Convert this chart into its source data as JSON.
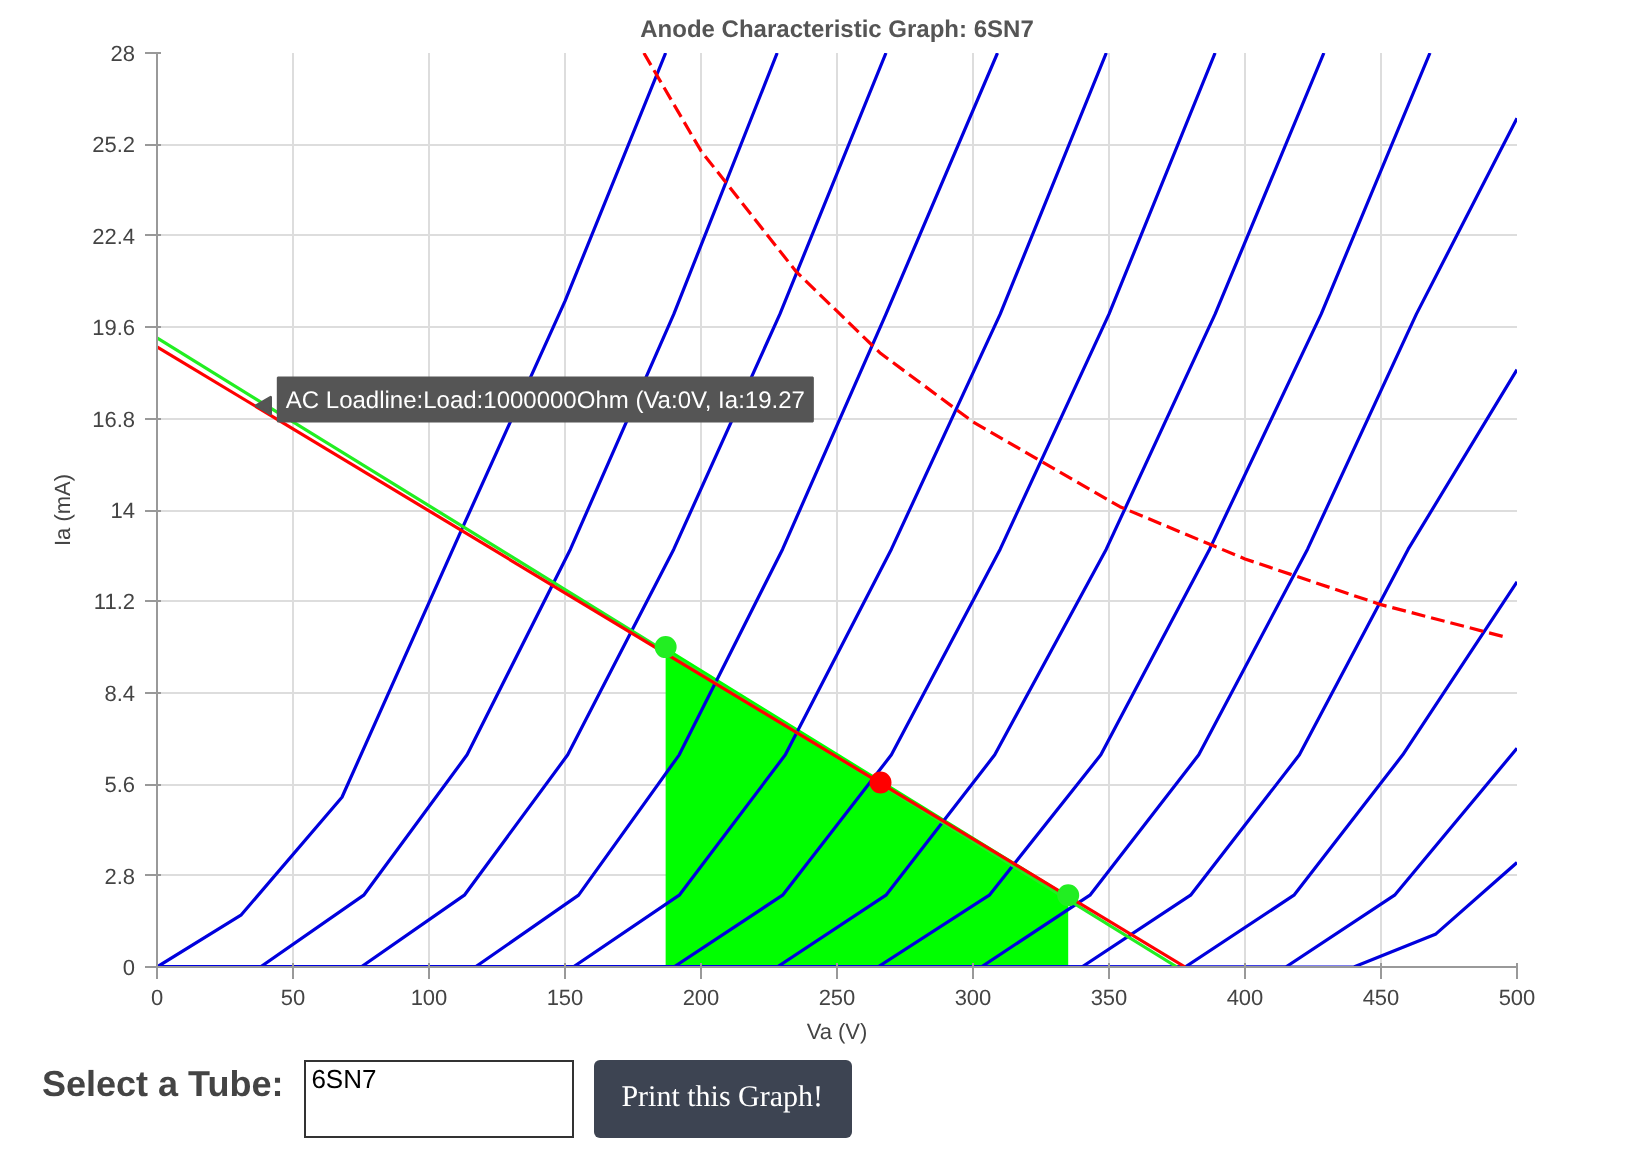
{
  "chart_data": {
    "type": "line",
    "title": "Anode Characteristic Graph: 6SN7",
    "xlabel": "Va (V)",
    "ylabel": "Ia (mA)",
    "xlim": [
      0,
      500
    ],
    "ylim": [
      0,
      28
    ],
    "xticks": [
      0,
      50,
      100,
      150,
      200,
      250,
      300,
      350,
      400,
      450,
      500
    ],
    "yticks": [
      0,
      2.8,
      5.6,
      8.4,
      11.2,
      14,
      16.8,
      19.6,
      22.4,
      25.2,
      28
    ],
    "grid": true,
    "series": [
      {
        "type": "area",
        "color": "#00ff00",
        "x": [
          187,
          335
        ],
        "values": [
          9.8,
          2.2
        ]
      },
      {
        "color": "#0000dd",
        "x": [
          0,
          31,
          68,
          112,
          150,
          187
        ],
        "values": [
          0,
          1.6,
          5.2,
          13.4,
          20.4,
          28
        ]
      },
      {
        "color": "#0000dd",
        "x": [
          0,
          38,
          76,
          114,
          152,
          190,
          228
        ],
        "values": [
          0,
          0,
          2.2,
          6.5,
          12.8,
          20,
          28
        ]
      },
      {
        "color": "#0000dd",
        "x": [
          0,
          75,
          113,
          151,
          190,
          229,
          268
        ],
        "values": [
          0,
          0,
          2.2,
          6.5,
          12.8,
          20,
          28
        ]
      },
      {
        "color": "#0000dd",
        "x": [
          0,
          117,
          155,
          192,
          230,
          268,
          309
        ],
        "values": [
          0,
          0,
          2.2,
          6.5,
          12.8,
          20,
          28
        ]
      },
      {
        "color": "#0000dd",
        "x": [
          0,
          153,
          192,
          231,
          270,
          310,
          349
        ],
        "values": [
          0,
          0,
          2.2,
          6.5,
          12.8,
          20,
          28
        ]
      },
      {
        "color": "#0000dd",
        "x": [
          0,
          190,
          230,
          270,
          310,
          350,
          389
        ],
        "values": [
          0,
          0,
          2.2,
          6.5,
          12.8,
          20,
          28
        ]
      },
      {
        "color": "#0000dd",
        "x": [
          0,
          228,
          268,
          308,
          349,
          389,
          429
        ],
        "values": [
          0,
          0,
          2.2,
          6.5,
          12.8,
          20,
          28
        ]
      },
      {
        "color": "#0000dd",
        "x": [
          0,
          265,
          306,
          347,
          387,
          428,
          468
        ],
        "values": [
          0,
          0,
          2.2,
          6.5,
          12.8,
          20,
          28
        ]
      },
      {
        "color": "#0000dd",
        "x": [
          0,
          303,
          343,
          383,
          423,
          463,
          500
        ],
        "values": [
          0,
          0,
          2.2,
          6.5,
          12.8,
          20,
          26
        ]
      },
      {
        "color": "#0000dd",
        "x": [
          0,
          340,
          380,
          420,
          460,
          500
        ],
        "values": [
          0,
          0,
          2.2,
          6.5,
          12.8,
          18.3
        ]
      },
      {
        "color": "#0000dd",
        "x": [
          0,
          378,
          418,
          458,
          500
        ],
        "values": [
          0,
          0,
          2.2,
          6.5,
          11.8
        ]
      },
      {
        "color": "#0000dd",
        "x": [
          0,
          415,
          455,
          500
        ],
        "values": [
          0,
          0,
          2.2,
          6.7
        ]
      },
      {
        "color": "#0000dd",
        "x": [
          0,
          440,
          470,
          500
        ],
        "values": [
          0,
          0,
          1,
          3.2
        ]
      },
      {
        "color": "#ff0000",
        "line_style": "dashed",
        "x": [
          179,
          200,
          235,
          266,
          300,
          354,
          400,
          450,
          496
        ],
        "values": [
          28,
          25,
          21.3,
          18.8,
          16.7,
          14.1,
          12.5,
          11.1,
          10.1
        ]
      },
      {
        "color": "#22ee22",
        "x": [
          0,
          375
        ],
        "values": [
          19.27,
          0
        ]
      },
      {
        "color": "#ff0000",
        "x": [
          0,
          378
        ],
        "values": [
          19,
          0
        ]
      },
      {
        "type": "scatter",
        "color": "#22ee22",
        "x": [
          187,
          335
        ],
        "values": [
          9.8,
          2.2
        ]
      },
      {
        "type": "scatter",
        "color": "#ff0000",
        "x": [
          266
        ],
        "values": [
          5.65
        ]
      }
    ],
    "annotations": [
      {
        "text": "AC Loadline:Load:1000000Ohm (Va:0V, Ia:19.27",
        "x": 40,
        "y": 17.2
      },
      "Select a Tube:",
      "6SN7",
      "Print this Graph!"
    ]
  }
}
